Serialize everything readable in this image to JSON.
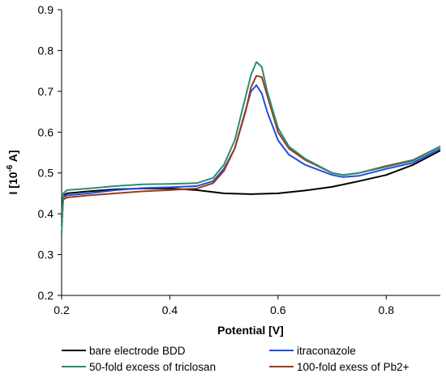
{
  "chart_data": {
    "type": "line",
    "xlabel": "Potential [V]",
    "ylabel_parts": {
      "base": "I [10",
      "sup": "-6",
      "unit": " A]"
    },
    "xlim": [
      0.2,
      0.9
    ],
    "ylim": [
      0.2,
      0.9
    ],
    "xticks": [
      {
        "value": 0.2,
        "label": "0.2"
      },
      {
        "value": 0.4,
        "label": "0.4"
      },
      {
        "value": 0.6,
        "label": "0.6"
      },
      {
        "value": 0.8,
        "label": "0.8"
      }
    ],
    "yticks": [
      {
        "value": 0.2,
        "label": "0.2"
      },
      {
        "value": 0.3,
        "label": "0.3"
      },
      {
        "value": 0.4,
        "label": "0.4"
      },
      {
        "value": 0.5,
        "label": "0.5"
      },
      {
        "value": 0.6,
        "label": "0.6"
      },
      {
        "value": 0.7,
        "label": "0.7"
      },
      {
        "value": 0.8,
        "label": "0.8"
      },
      {
        "value": 0.9,
        "label": "0.9"
      }
    ],
    "grid": false,
    "legend_position": "bottom",
    "series": [
      {
        "name": "bare electrode BDD",
        "color": "#000000",
        "x": [
          0.2,
          0.203,
          0.21,
          0.25,
          0.3,
          0.35,
          0.4,
          0.45,
          0.5,
          0.55,
          0.6,
          0.65,
          0.7,
          0.75,
          0.8,
          0.85,
          0.9
        ],
        "y": [
          0.39,
          0.445,
          0.45,
          0.455,
          0.46,
          0.462,
          0.462,
          0.458,
          0.45,
          0.448,
          0.45,
          0.457,
          0.466,
          0.48,
          0.495,
          0.52,
          0.555
        ]
      },
      {
        "name": "itraconazole",
        "color": "#1f4fe0",
        "x": [
          0.2,
          0.203,
          0.21,
          0.25,
          0.3,
          0.35,
          0.4,
          0.45,
          0.48,
          0.5,
          0.52,
          0.535,
          0.55,
          0.56,
          0.57,
          0.58,
          0.6,
          0.62,
          0.65,
          0.7,
          0.72,
          0.75,
          0.8,
          0.85,
          0.9
        ],
        "y": [
          0.37,
          0.44,
          0.445,
          0.45,
          0.458,
          0.463,
          0.465,
          0.468,
          0.48,
          0.51,
          0.56,
          0.63,
          0.7,
          0.715,
          0.695,
          0.65,
          0.58,
          0.545,
          0.52,
          0.495,
          0.49,
          0.493,
          0.51,
          0.525,
          0.56
        ]
      },
      {
        "name": "50-fold excess of triclosan",
        "color": "#2e8b6f",
        "x": [
          0.2,
          0.203,
          0.21,
          0.25,
          0.3,
          0.35,
          0.4,
          0.45,
          0.48,
          0.5,
          0.52,
          0.535,
          0.55,
          0.56,
          0.57,
          0.58,
          0.6,
          0.62,
          0.65,
          0.7,
          0.72,
          0.75,
          0.8,
          0.85,
          0.9
        ],
        "y": [
          0.35,
          0.45,
          0.458,
          0.462,
          0.468,
          0.472,
          0.473,
          0.475,
          0.488,
          0.52,
          0.58,
          0.66,
          0.74,
          0.772,
          0.76,
          0.7,
          0.61,
          0.565,
          0.535,
          0.5,
          0.495,
          0.5,
          0.515,
          0.53,
          0.565
        ]
      },
      {
        "name": "100-fold exess of Pb2+",
        "color": "#9a3a1c",
        "x": [
          0.2,
          0.203,
          0.21,
          0.25,
          0.3,
          0.35,
          0.4,
          0.45,
          0.48,
          0.5,
          0.52,
          0.54,
          0.55,
          0.56,
          0.57,
          0.58,
          0.6,
          0.62,
          0.65,
          0.7,
          0.72,
          0.75,
          0.8,
          0.85,
          0.9
        ],
        "y": [
          0.38,
          0.435,
          0.44,
          0.445,
          0.45,
          0.455,
          0.458,
          0.462,
          0.475,
          0.505,
          0.56,
          0.65,
          0.71,
          0.738,
          0.735,
          0.69,
          0.6,
          0.56,
          0.532,
          0.5,
          0.495,
          0.5,
          0.517,
          0.532,
          0.565
        ]
      }
    ]
  }
}
